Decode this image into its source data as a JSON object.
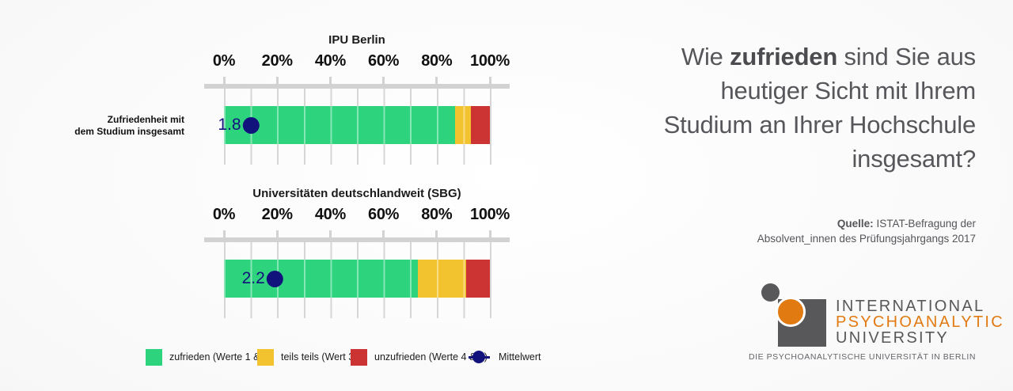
{
  "question": {
    "line1_pre": "Wie ",
    "line1_bold": "zufrieden",
    "line1_post": " sind Sie aus",
    "line2": "heutiger Sicht mit Ihrem",
    "line3": "Studium an Ihrer Hochschule",
    "line4": "insgesamt?"
  },
  "source": {
    "bold": "Quelle:",
    "line1_rest": " ISTAT-Befragung der",
    "line2": "Absolvent_innen des Prüfungsjahrgangs 2017"
  },
  "row_label": {
    "line1": "Zufriedenheit mit",
    "line2": "dem Studium insgesamt"
  },
  "colors": {
    "series": [
      "#2ed47d",
      "#f3c32f",
      "#cb3433"
    ],
    "mean": "#12127d",
    "axis": "#d2d2d2",
    "grid": "#d6d6d6"
  },
  "chart_data": [
    {
      "type": "bar",
      "orientation": "horizontal",
      "stacked": true,
      "title": "IPU Berlin",
      "categories": [
        "Zufriedenheit mit dem Studium insgesamt"
      ],
      "series": [
        {
          "name": "zufrieden (Werte 1 & 2)",
          "values": [
            87
          ]
        },
        {
          "name": "teils teils (Wert 3)",
          "values": [
            6
          ]
        },
        {
          "name": "unzufrieden (Werte 4 & 5)",
          "values": [
            7
          ]
        }
      ],
      "mean": 1.8,
      "mean_label": "1.8",
      "mean_dot_x_pct": 10,
      "xlim": [
        0,
        100
      ],
      "x_ticks": [
        "0%",
        "20%",
        "40%",
        "60%",
        "80%",
        "100%"
      ],
      "grid": true,
      "legend_position": "bottom"
    },
    {
      "type": "bar",
      "orientation": "horizontal",
      "stacked": true,
      "title": "Universitäten deutschlandweit (SBG)",
      "categories": [
        "Zufriedenheit mit dem Studium insgesamt"
      ],
      "series": [
        {
          "name": "zufrieden (Werte 1 & 2)",
          "values": [
            73
          ]
        },
        {
          "name": "teils teils (Wert 3)",
          "values": [
            18
          ]
        },
        {
          "name": "unzufrieden (Werte 4 & 5)",
          "values": [
            9
          ]
        }
      ],
      "mean": 2.2,
      "mean_label": "2.2",
      "mean_dot_x_pct": 19,
      "xlim": [
        0,
        100
      ],
      "x_ticks": [
        "0%",
        "20%",
        "40%",
        "60%",
        "80%",
        "100%"
      ],
      "grid": true,
      "legend_position": "bottom"
    }
  ],
  "legend": [
    {
      "type": "square",
      "color": "#2ed47d",
      "label": "zufrieden (Werte 1 & 2)"
    },
    {
      "type": "square",
      "color": "#f3c32f",
      "label": "teils teils (Wert 3)"
    },
    {
      "type": "square",
      "color": "#cb3433",
      "label": "unzufrieden (Werte 4 & 5)"
    },
    {
      "type": "dot-line",
      "color": "#12127d",
      "label": "Mittelwert"
    }
  ],
  "logo": {
    "line1": "INTERNATIONAL",
    "line2": "PSYCHOANALYTIC",
    "line3": "UNIVERSITY",
    "tagline": "DIE PSYCHOANALYTISCHE UNIVERSITÄT IN BERLIN",
    "orange": "#e27a12",
    "gray": "#58585a"
  }
}
